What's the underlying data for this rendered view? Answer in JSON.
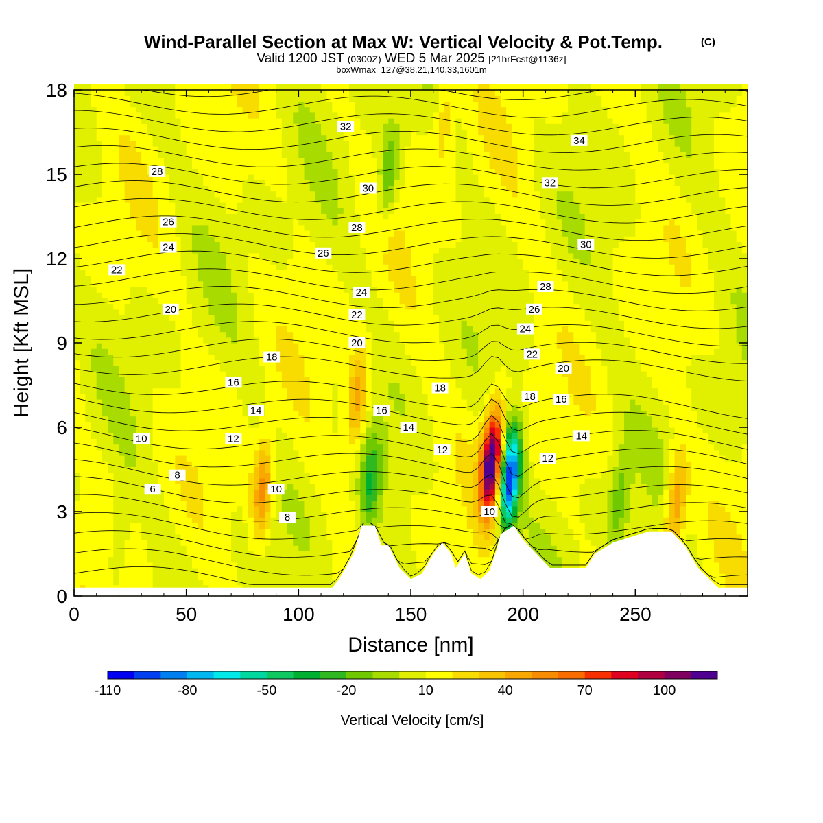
{
  "chart_data": {
    "type": "heatmap",
    "title": "Wind-Parallel Section at Max W: Vertical Velocity & Pot.Temp.",
    "copyright_mark": "(C)",
    "subtitle_main_prefix": "Valid 1200 JST ",
    "subtitle_zulu": "(0300Z)",
    "subtitle_main_suffix": " WED 5 Mar 2025 ",
    "subtitle_forecast": "[21hrFcst@1136z]",
    "subtitle_box": "boxWmax=127@38.21,140.33,1601m",
    "xlabel": "Distance [nm]",
    "ylabel": "Height [Kft MSL]",
    "xlim": [
      0,
      300
    ],
    "ylim": [
      0,
      18
    ],
    "x_ticks": [
      0,
      50,
      100,
      150,
      200,
      250
    ],
    "y_ticks": [
      0,
      3,
      6,
      9,
      12,
      15,
      18
    ],
    "colorbar": {
      "label": "Vertical Velocity [cm/s]",
      "tick_labels": [
        "-110",
        "-80",
        "-50",
        "-20",
        "10",
        "40",
        "70",
        "100"
      ],
      "range": [
        -110,
        120
      ],
      "colors": [
        "#0000f0",
        "#0040f0",
        "#0080f0",
        "#00b8f0",
        "#00e8e8",
        "#00d8a0",
        "#10c860",
        "#00b030",
        "#30b820",
        "#70c800",
        "#a8dc00",
        "#e0f000",
        "#ffff00",
        "#f8dc00",
        "#f8c400",
        "#f8a800",
        "#f88c00",
        "#f86c00",
        "#f83000",
        "#e00020",
        "#b00040",
        "#800060",
        "#500090"
      ]
    },
    "max_updraft_cm_s": 127,
    "theta_contour_labels": [
      "6",
      "8",
      "8",
      "10",
      "10",
      "10",
      "12",
      "12",
      "12",
      "14",
      "14",
      "14",
      "16",
      "16",
      "16",
      "18",
      "18",
      "18",
      "20",
      "20",
      "20",
      "22",
      "22",
      "22",
      "24",
      "24",
      "24",
      "26",
      "26",
      "26",
      "28",
      "28",
      "28",
      "30",
      "30",
      "32",
      "32",
      "34"
    ],
    "terrain_kft": [
      {
        "x": 0,
        "h": 0.3
      },
      {
        "x": 115,
        "h": 0.3
      },
      {
        "x": 118,
        "h": 0.6
      },
      {
        "x": 121,
        "h": 1.0
      },
      {
        "x": 125,
        "h": 1.6
      },
      {
        "x": 128,
        "h": 2.5
      },
      {
        "x": 134,
        "h": 2.5
      },
      {
        "x": 137,
        "h": 1.8
      },
      {
        "x": 140,
        "h": 1.8
      },
      {
        "x": 145,
        "h": 1.0
      },
      {
        "x": 150,
        "h": 0.6
      },
      {
        "x": 155,
        "h": 0.8
      },
      {
        "x": 160,
        "h": 1.5
      },
      {
        "x": 164,
        "h": 1.9
      },
      {
        "x": 168,
        "h": 1.5
      },
      {
        "x": 170,
        "h": 1.0
      },
      {
        "x": 174,
        "h": 1.5
      },
      {
        "x": 177,
        "h": 0.8
      },
      {
        "x": 181,
        "h": 0.6
      },
      {
        "x": 185,
        "h": 0.9
      },
      {
        "x": 188,
        "h": 1.6
      },
      {
        "x": 190,
        "h": 2.2
      },
      {
        "x": 196,
        "h": 2.5
      },
      {
        "x": 200,
        "h": 2.0
      },
      {
        "x": 206,
        "h": 1.5
      },
      {
        "x": 212,
        "h": 1.0
      },
      {
        "x": 228,
        "h": 1.0
      },
      {
        "x": 232,
        "h": 1.5
      },
      {
        "x": 240,
        "h": 1.9
      },
      {
        "x": 256,
        "h": 2.3
      },
      {
        "x": 266,
        "h": 2.3
      },
      {
        "x": 272,
        "h": 1.8
      },
      {
        "x": 278,
        "h": 1.0
      },
      {
        "x": 283,
        "h": 0.6
      },
      {
        "x": 287,
        "h": 0.3
      },
      {
        "x": 300,
        "h": 0.3
      }
    ],
    "w_features": [
      {
        "x": 186,
        "z": 4.8,
        "w": 120
      },
      {
        "x": 194,
        "z": 4.2,
        "w": -110
      },
      {
        "x": 84,
        "z": 3.8,
        "w": 45
      },
      {
        "x": 126,
        "z": 7.0,
        "w": 40
      },
      {
        "x": 140,
        "z": 15.0,
        "w": -30
      },
      {
        "x": 132,
        "z": 4.0,
        "w": -35
      },
      {
        "x": 243,
        "z": 3.5,
        "w": -25
      },
      {
        "x": 268,
        "z": 3.2,
        "w": 45
      },
      {
        "x": 20,
        "z": 2.0,
        "w": -15
      },
      {
        "x": 165,
        "z": 17.0,
        "w": 20
      }
    ]
  }
}
